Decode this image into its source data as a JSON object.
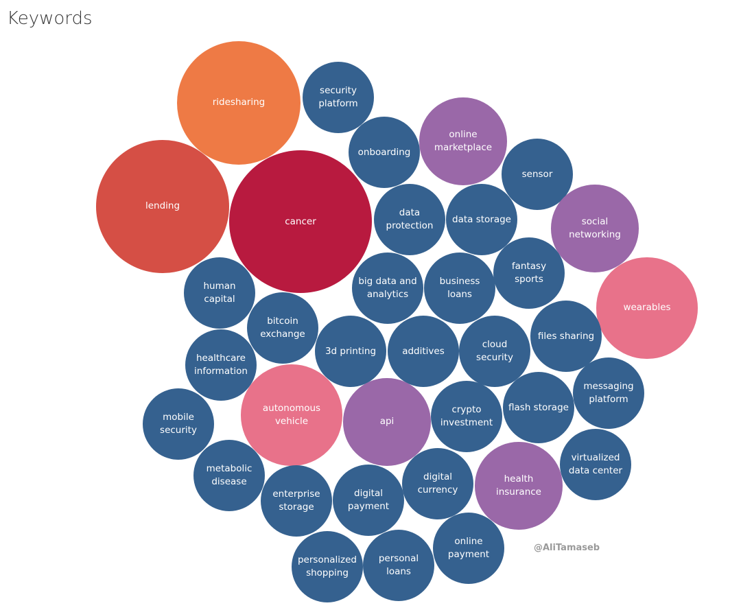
{
  "chart_data": {
    "type": "bubble",
    "title": "Keywords",
    "watermark": "@AliTamaseb",
    "categories": [
      "ridesharing",
      "security platform",
      "lending",
      "cancer",
      "onboarding",
      "online marketplace",
      "sensor",
      "data protection",
      "data storage",
      "social networking",
      "human capital",
      "big data and analytics",
      "business loans",
      "fantasy sports",
      "wearables",
      "bitcoin exchange",
      "healthcare information",
      "3d printing",
      "additives",
      "cloud security",
      "files sharing",
      "messaging platform",
      "autonomous vehicle",
      "api",
      "crypto investment",
      "flash storage",
      "mobile security",
      "virtualized data center",
      "metabolic disease",
      "enterprise storage",
      "digital payment",
      "digital currency",
      "health insurance",
      "online payment",
      "personalized shopping",
      "personal loans"
    ],
    "values": [
      3,
      1,
      3.5,
      4,
      1,
      1.5,
      1,
      1,
      1,
      1.5,
      1,
      1,
      1,
      1,
      2,
      1,
      1,
      1,
      1,
      1,
      1,
      1,
      2,
      1.5,
      1,
      1,
      1,
      1,
      1,
      1,
      1,
      1,
      1.5,
      1,
      1,
      1
    ],
    "colors": [
      "#ee7a45",
      "#35618f",
      "#d54f45",
      "#b81a3f",
      "#35618f",
      "#9a68a8",
      "#35618f",
      "#35618f",
      "#35618f",
      "#9a68a8",
      "#35618f",
      "#35618f",
      "#35618f",
      "#35618f",
      "#e8728a",
      "#35618f",
      "#35618f",
      "#35618f",
      "#35618f",
      "#35618f",
      "#35618f",
      "#35618f",
      "#e8728a",
      "#9a68a8",
      "#35618f",
      "#35618f",
      "#35618f",
      "#35618f",
      "#35618f",
      "#35618f",
      "#35618f",
      "#35618f",
      "#9a68a8",
      "#35618f",
      "#35618f",
      "#35618f"
    ]
  }
}
